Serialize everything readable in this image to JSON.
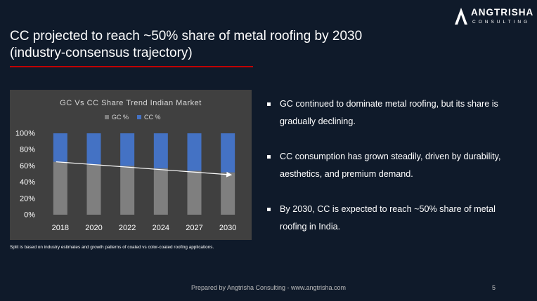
{
  "brand": {
    "name": "ANGTRISHA",
    "sub": "CONSULTING"
  },
  "slide": {
    "title_line1": "CC projected to reach ~50% share of metal roofing by 2030",
    "title_line2": "(industry-consensus trajectory)"
  },
  "bullets": [
    "GC continued to dominate metal roofing, but its share is gradually declining.",
    "CC consumption has grown steadily, driven by durability, aesthetics, and premium demand.",
    "By 2030, CC is expected to reach ~50% share of metal roofing in India."
  ],
  "footnote": "Split is based on industry estimates and growth patterns of coated vs color-coated roofing applications.",
  "footer": {
    "text": "Prepared by Angtrisha Consulting - www.angtrisha.com",
    "page": "5"
  },
  "colors": {
    "background": "#0f1a2a",
    "accent_red": "#c00000",
    "chart_bg": "#404040",
    "gc": "#7f7f7f",
    "cc": "#4472c4"
  },
  "chart_data": {
    "type": "bar",
    "stacked": true,
    "title": "GC Vs CC Share Trend Indian Market",
    "categories": [
      "2018",
      "2020",
      "2022",
      "2024",
      "2027",
      "2030"
    ],
    "series": [
      {
        "name": "GC %",
        "values": [
          65,
          62,
          60,
          57,
          54,
          52
        ]
      },
      {
        "name": "CC %",
        "values": [
          35,
          38,
          40,
          43,
          46,
          48
        ]
      }
    ],
    "ylim": [
      0,
      100
    ],
    "yticks": [
      "0%",
      "20%",
      "40%",
      "60%",
      "80%",
      "100%"
    ],
    "legend": "top",
    "trend_arrow": {
      "from": {
        "category": "2018",
        "value": 65
      },
      "to": {
        "category": "2030",
        "value": 49
      }
    }
  }
}
